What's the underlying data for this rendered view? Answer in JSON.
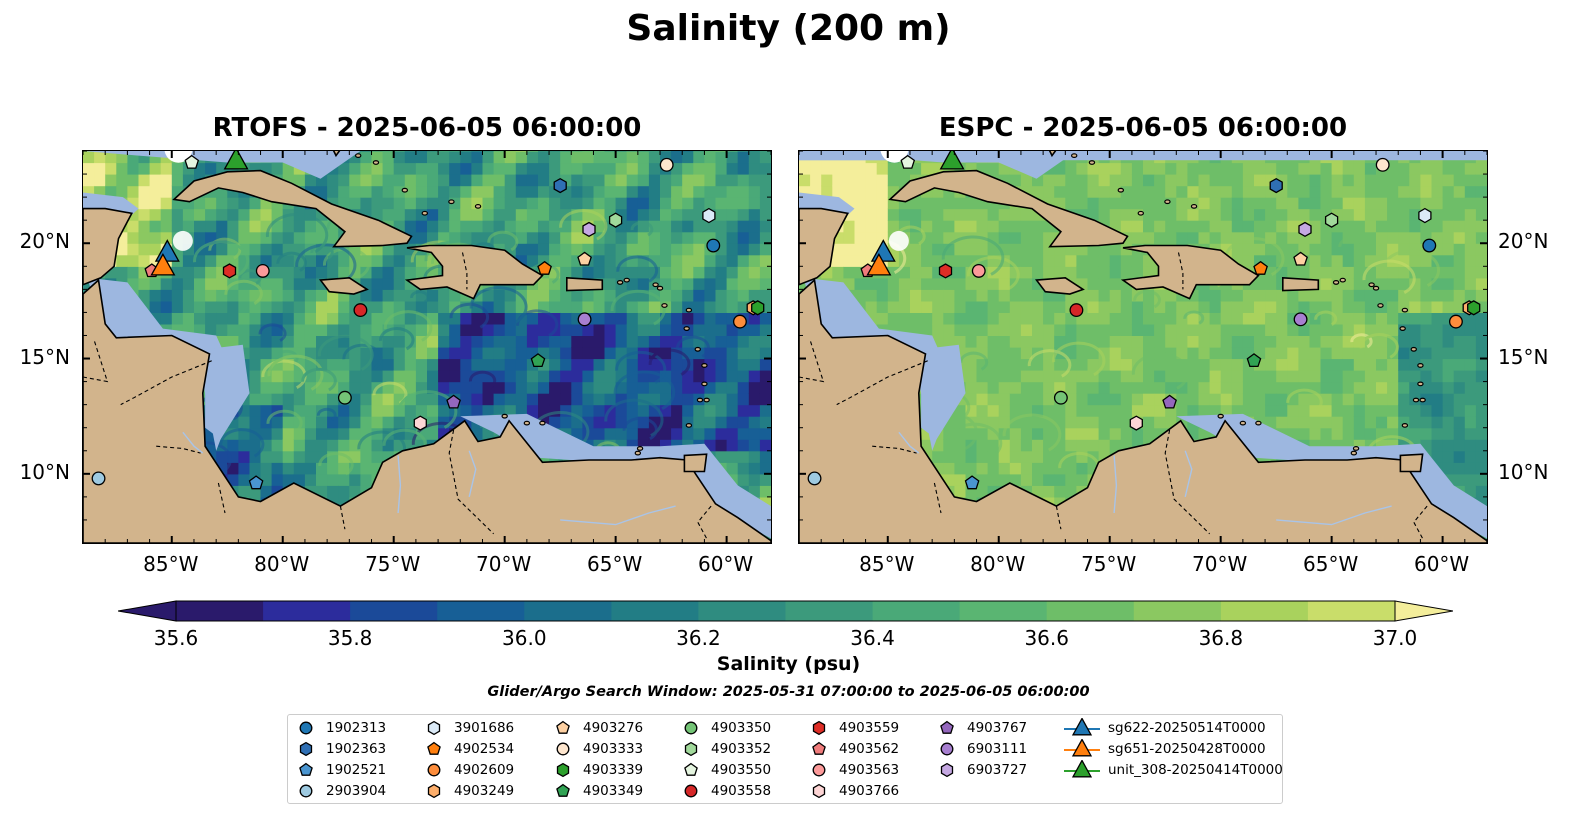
{
  "title": "Salinity (200 m)",
  "panels": [
    {
      "title": "RTOFS - 2025-06-05 06:00:00",
      "model": "RTOFS"
    },
    {
      "title": "ESPC - 2025-06-05 06:00:00",
      "model": "ESPC"
    }
  ],
  "axes": {
    "lon_ticks": [
      "85°W",
      "80°W",
      "75°W",
      "70°W",
      "65°W",
      "60°W"
    ],
    "lon_values": [
      -85,
      -80,
      -75,
      -70,
      -65,
      -60
    ],
    "lat_ticks": [
      "20°N",
      "15°N",
      "10°N"
    ],
    "lat_values": [
      20,
      15,
      10
    ],
    "lon_range": [
      -89,
      -58
    ],
    "lat_range": [
      7,
      24
    ]
  },
  "colorbar": {
    "label": "Salinity (psu)",
    "ticks": [
      "35.6",
      "35.8",
      "36.0",
      "36.2",
      "36.4",
      "36.6",
      "36.8",
      "37.0"
    ],
    "range": [
      35.6,
      37.0
    ],
    "colors": [
      "#2a1a6b",
      "#2c2c9c",
      "#1b4a99",
      "#175f96",
      "#1b6e8c",
      "#227d85",
      "#2f8c80",
      "#3c9a7c",
      "#4aa978",
      "#5ab572",
      "#6ebe68",
      "#8bc861",
      "#a9d25d",
      "#c9dd6a",
      "#f4ee9b"
    ],
    "extend": "both"
  },
  "window_note": "Glider/Argo Search Window: 2025-05-31 07:00:00 to 2025-06-05 06:00:00",
  "legend": {
    "columns": [
      [
        {
          "id": "1902313",
          "marker": "circle",
          "color": "#1f77b4"
        },
        {
          "id": "1902363",
          "marker": "hexagon",
          "color": "#2f6fb4"
        },
        {
          "id": "1902521",
          "marker": "pentagon",
          "color": "#4a95d0"
        },
        {
          "id": "2903904",
          "marker": "circle",
          "color": "#9ecae1"
        }
      ],
      [
        {
          "id": "3901686",
          "marker": "hexagon",
          "color": "#dbeaf7"
        },
        {
          "id": "4902534",
          "marker": "pentagon",
          "color": "#ff7f0e"
        },
        {
          "id": "4902609",
          "marker": "circle",
          "color": "#fd8d3c"
        },
        {
          "id": "4903249",
          "marker": "hexagon",
          "color": "#fdae6b"
        }
      ],
      [
        {
          "id": "4903276",
          "marker": "pentagon",
          "color": "#fdd0a2"
        },
        {
          "id": "4903333",
          "marker": "circle",
          "color": "#fee6ce"
        },
        {
          "id": "4903339",
          "marker": "hexagon",
          "color": "#2ca02c"
        },
        {
          "id": "4903349",
          "marker": "pentagon",
          "color": "#31a354"
        }
      ],
      [
        {
          "id": "4903350",
          "marker": "circle",
          "color": "#74c476"
        },
        {
          "id": "4903352",
          "marker": "hexagon",
          "color": "#a1d99b"
        },
        {
          "id": "4903550",
          "marker": "pentagon",
          "color": "#e5f5e0"
        },
        {
          "id": "4903558",
          "marker": "circle",
          "color": "#d62728"
        }
      ],
      [
        {
          "id": "4903559",
          "marker": "hexagon",
          "color": "#de2d26"
        },
        {
          "id": "4903562",
          "marker": "pentagon",
          "color": "#f07c7c"
        },
        {
          "id": "4903563",
          "marker": "circle",
          "color": "#fc9a9a"
        },
        {
          "id": "4903766",
          "marker": "hexagon",
          "color": "#fdd5d5"
        }
      ],
      [
        {
          "id": "4903767",
          "marker": "pentagon",
          "color": "#9467bd"
        },
        {
          "id": "6903111",
          "marker": "circle",
          "color": "#a77fd0"
        },
        {
          "id": "6903727",
          "marker": "hexagon",
          "color": "#c5a8e2"
        }
      ],
      [
        {
          "id": "sg622-20250514T0000",
          "marker": "triangle",
          "color": "#1f77b4"
        },
        {
          "id": "sg651-20250428T0000",
          "marker": "triangle",
          "color": "#ff7f0e"
        },
        {
          "id": "unit_308-20250414T0000",
          "marker": "triangle",
          "color": "#2ca02c"
        }
      ]
    ]
  },
  "colors": {
    "land": "#d2b48c",
    "shelf": "#9db7e0",
    "rivers": "#a9c4e8"
  },
  "observations": [
    {
      "id": "1902313",
      "lon": -60.6,
      "lat": 19.9
    },
    {
      "id": "1902363",
      "lon": -67.5,
      "lat": 22.5
    },
    {
      "id": "1902521",
      "lon": -81.2,
      "lat": 9.6
    },
    {
      "id": "2903904",
      "lon": -88.3,
      "lat": 9.8
    },
    {
      "id": "3901686",
      "lon": -60.8,
      "lat": 21.2
    },
    {
      "id": "4902534",
      "lon": -68.2,
      "lat": 18.9
    },
    {
      "id": "4902609",
      "lon": -59.4,
      "lat": 16.6
    },
    {
      "id": "4903249",
      "lon": -58.8,
      "lat": 17.2
    },
    {
      "id": "4903276",
      "lon": -66.4,
      "lat": 19.3
    },
    {
      "id": "4903333",
      "lon": -62.7,
      "lat": 23.4
    },
    {
      "id": "4903339",
      "lon": -58.6,
      "lat": 17.2
    },
    {
      "id": "4903349",
      "lon": -68.5,
      "lat": 14.9
    },
    {
      "id": "4903350",
      "lon": -77.2,
      "lat": 13.3
    },
    {
      "id": "4903352",
      "lon": -65.0,
      "lat": 21.0
    },
    {
      "id": "4903550",
      "lon": -84.1,
      "lat": 23.5
    },
    {
      "id": "4903558",
      "lon": -76.5,
      "lat": 17.1
    },
    {
      "id": "4903559",
      "lon": -82.4,
      "lat": 18.8
    },
    {
      "id": "4903562",
      "lon": -85.9,
      "lat": 18.8
    },
    {
      "id": "4903563",
      "lon": -80.9,
      "lat": 18.8
    },
    {
      "id": "4903766",
      "lon": -73.8,
      "lat": 12.2
    },
    {
      "id": "4903767",
      "lon": -72.3,
      "lat": 13.1
    },
    {
      "id": "6903111",
      "lon": -66.4,
      "lat": 16.7
    },
    {
      "id": "6903727",
      "lon": -66.2,
      "lat": 20.6
    }
  ],
  "gliders": [
    {
      "id": "sg622-20250514T0000",
      "lon": -85.2,
      "lat": 19.6
    },
    {
      "id": "sg651-20250428T0000",
      "lon": -85.4,
      "lat": 19.0
    },
    {
      "id": "unit_308-20250414T0000",
      "lon": -82.1,
      "lat": 23.6
    }
  ]
}
